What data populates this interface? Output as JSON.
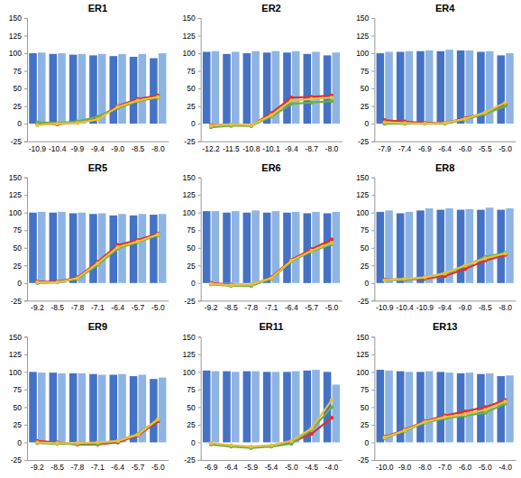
{
  "chart_data": [
    {
      "type": "bar",
      "title": "ER1",
      "categories": [
        "-10.9",
        "-10.4",
        "-9.9",
        "-9.4",
        "-9.0",
        "-8.5",
        "-8.0"
      ],
      "ylim": [
        -25,
        150
      ],
      "yticks": [
        -25,
        0,
        25,
        50,
        75,
        100,
        125,
        150
      ],
      "series": [
        {
          "type": "bar",
          "color": "#4472c4",
          "values": [
            100,
            99,
            98,
            97,
            96,
            95,
            93
          ]
        },
        {
          "type": "bar",
          "color": "#8eb4e3",
          "values": [
            101,
            100,
            99,
            99,
            99,
            99,
            100
          ]
        },
        {
          "type": "line",
          "color": "#e0302c",
          "marker": "circle",
          "values": [
            0,
            -1,
            2,
            8,
            25,
            35,
            40
          ]
        },
        {
          "type": "line",
          "color": "#6ab04c",
          "marker": "circle",
          "values": [
            2,
            1,
            3,
            10,
            22,
            32,
            37
          ]
        },
        {
          "type": "line",
          "color": "#e8c040",
          "marker": "circle",
          "values": [
            -2,
            0,
            1,
            6,
            24,
            33,
            38
          ]
        }
      ]
    },
    {
      "type": "bar",
      "title": "ER2",
      "categories": [
        "-12.2",
        "-11.5",
        "-10.8",
        "-10.1",
        "-9.4",
        "-8.7",
        "-8.0"
      ],
      "ylim": [
        -25,
        150
      ],
      "yticks": [
        -25,
        0,
        25,
        50,
        75,
        100,
        125,
        150
      ],
      "series": [
        {
          "type": "bar",
          "color": "#4472c4",
          "values": [
            102,
            99,
            100,
            101,
            101,
            99,
            97
          ]
        },
        {
          "type": "bar",
          "color": "#8eb4e3",
          "values": [
            103,
            102,
            103,
            103,
            103,
            102,
            101
          ]
        },
        {
          "type": "line",
          "color": "#e0302c",
          "marker": "circle",
          "values": [
            -2,
            -2,
            -3,
            15,
            37,
            38,
            40
          ]
        },
        {
          "type": "line",
          "color": "#6ab04c",
          "marker": "circle",
          "values": [
            -5,
            -3,
            -3,
            10,
            28,
            30,
            32
          ]
        },
        {
          "type": "line",
          "color": "#e8c040",
          "marker": "circle",
          "values": [
            -3,
            -1,
            -2,
            12,
            33,
            35,
            37
          ]
        }
      ]
    },
    {
      "type": "bar",
      "title": "ER4",
      "categories": [
        "-7.9",
        "-7.4",
        "-6.9",
        "-6.4",
        "-6.0",
        "-5.5",
        "-5.0"
      ],
      "ylim": [
        -25,
        150
      ],
      "yticks": [
        -25,
        0,
        25,
        50,
        75,
        100,
        125,
        150
      ],
      "series": [
        {
          "type": "bar",
          "color": "#4472c4",
          "values": [
            100,
            102,
            103,
            103,
            104,
            102,
            97
          ]
        },
        {
          "type": "bar",
          "color": "#8eb4e3",
          "values": [
            102,
            103,
            104,
            105,
            104,
            103,
            100
          ]
        },
        {
          "type": "line",
          "color": "#e0302c",
          "marker": "circle",
          "values": [
            5,
            3,
            1,
            1,
            8,
            15,
            28
          ]
        },
        {
          "type": "line",
          "color": "#6ab04c",
          "marker": "circle",
          "values": [
            0,
            0,
            0,
            0,
            6,
            14,
            25
          ]
        },
        {
          "type": "line",
          "color": "#e8c040",
          "marker": "circle",
          "values": [
            2,
            1,
            0,
            1,
            7,
            16,
            30
          ]
        }
      ]
    },
    {
      "type": "bar",
      "title": "ER5",
      "categories": [
        "-9.2",
        "-8.5",
        "-7.8",
        "-7.1",
        "-6.4",
        "-5.7",
        "-5.0"
      ],
      "ylim": [
        -25,
        150
      ],
      "yticks": [
        -25,
        0,
        25,
        50,
        75,
        100,
        125,
        150
      ],
      "series": [
        {
          "type": "bar",
          "color": "#4472c4",
          "values": [
            100,
            100,
            99,
            98,
            96,
            96,
            97
          ]
        },
        {
          "type": "bar",
          "color": "#8eb4e3",
          "values": [
            101,
            101,
            100,
            99,
            98,
            98,
            98
          ]
        },
        {
          "type": "line",
          "color": "#e0302c",
          "marker": "circle",
          "values": [
            2,
            2,
            8,
            30,
            54,
            61,
            70
          ]
        },
        {
          "type": "line",
          "color": "#6ab04c",
          "marker": "circle",
          "values": [
            0,
            1,
            6,
            26,
            49,
            58,
            68
          ]
        },
        {
          "type": "line",
          "color": "#e8c040",
          "marker": "circle",
          "values": [
            1,
            1,
            7,
            28,
            51,
            59,
            69
          ]
        }
      ]
    },
    {
      "type": "bar",
      "title": "ER6",
      "categories": [
        "-9.2",
        "-8.5",
        "-7.8",
        "-7.1",
        "-6.4",
        "-5.7",
        "-5.0"
      ],
      "ylim": [
        -25,
        150
      ],
      "yticks": [
        -25,
        0,
        25,
        50,
        75,
        100,
        125,
        150
      ],
      "series": [
        {
          "type": "bar",
          "color": "#4472c4",
          "values": [
            102,
            100,
            100,
            100,
            100,
            99,
            99
          ]
        },
        {
          "type": "bar",
          "color": "#8eb4e3",
          "values": [
            102,
            102,
            103,
            102,
            101,
            101,
            101
          ]
        },
        {
          "type": "line",
          "color": "#e0302c",
          "marker": "circle",
          "values": [
            0,
            -2,
            -3,
            8,
            33,
            48,
            62
          ]
        },
        {
          "type": "line",
          "color": "#6ab04c",
          "marker": "circle",
          "values": [
            -2,
            -4,
            -4,
            6,
            31,
            45,
            55
          ]
        },
        {
          "type": "line",
          "color": "#e8c040",
          "marker": "circle",
          "values": [
            -1,
            -3,
            -2,
            7,
            32,
            46,
            57
          ]
        }
      ]
    },
    {
      "type": "bar",
      "title": "ER8",
      "categories": [
        "-10.9",
        "-10.4",
        "-10.9",
        "-9.4",
        "-9.0",
        "-8.5",
        "-8.0"
      ],
      "ylim": [
        -25,
        150
      ],
      "yticks": [
        -25,
        0,
        25,
        50,
        75,
        100,
        125,
        150
      ],
      "series": [
        {
          "type": "bar",
          "color": "#4472c4",
          "values": [
            101,
            99,
            103,
            104,
            104,
            104,
            104
          ]
        },
        {
          "type": "bar",
          "color": "#8eb4e3",
          "values": [
            103,
            101,
            106,
            106,
            105,
            107,
            106
          ]
        },
        {
          "type": "line",
          "color": "#e0302c",
          "marker": "circle",
          "values": [
            5,
            5,
            6,
            10,
            20,
            32,
            40
          ]
        },
        {
          "type": "line",
          "color": "#6ab04c",
          "marker": "circle",
          "values": [
            4,
            4,
            8,
            13,
            24,
            37,
            43
          ]
        },
        {
          "type": "line",
          "color": "#e8c040",
          "marker": "circle",
          "values": [
            4,
            6,
            8,
            14,
            25,
            35,
            42
          ]
        }
      ]
    },
    {
      "type": "bar",
      "title": "ER9",
      "categories": [
        "-9.2",
        "-8.5",
        "-7.8",
        "-7.1",
        "-6.4",
        "-5.7",
        "-5.0"
      ],
      "ylim": [
        -25,
        150
      ],
      "yticks": [
        -25,
        0,
        25,
        50,
        75,
        100,
        125,
        150
      ],
      "series": [
        {
          "type": "bar",
          "color": "#4472c4",
          "values": [
            100,
            99,
            98,
            97,
            96,
            94,
            90
          ]
        },
        {
          "type": "bar",
          "color": "#8eb4e3",
          "values": [
            99,
            98,
            98,
            96,
            97,
            96,
            92
          ]
        },
        {
          "type": "line",
          "color": "#e0302c",
          "marker": "circle",
          "values": [
            2,
            0,
            -3,
            -3,
            0,
            10,
            30
          ]
        },
        {
          "type": "line",
          "color": "#6ab04c",
          "marker": "circle",
          "values": [
            -1,
            -2,
            -2,
            -2,
            2,
            12,
            32
          ]
        },
        {
          "type": "line",
          "color": "#e8c040",
          "marker": "circle",
          "values": [
            0,
            -1,
            -1,
            0,
            2,
            11,
            33
          ]
        }
      ]
    },
    {
      "type": "bar",
      "title": "ER11",
      "categories": [
        "-6.9",
        "-6.4",
        "-5.9",
        "-5.4",
        "-5.0",
        "-4.5",
        "-4.0"
      ],
      "ylim": [
        -25,
        150
      ],
      "yticks": [
        -25,
        0,
        25,
        50,
        75,
        100,
        125,
        150
      ],
      "series": [
        {
          "type": "bar",
          "color": "#4472c4",
          "values": [
            102,
            101,
            101,
            100,
            100,
            102,
            100
          ]
        },
        {
          "type": "bar",
          "color": "#8eb4e3",
          "values": [
            101,
            100,
            101,
            100,
            101,
            103,
            82
          ]
        },
        {
          "type": "line",
          "color": "#e0302c",
          "marker": "circle",
          "values": [
            -2,
            -5,
            -7,
            -5,
            0,
            12,
            35
          ]
        },
        {
          "type": "line",
          "color": "#6ab04c",
          "marker": "circle",
          "values": [
            -3,
            -6,
            -8,
            -6,
            -2,
            18,
            50
          ]
        },
        {
          "type": "line",
          "color": "#e8c040",
          "marker": "circle",
          "values": [
            -1,
            -4,
            -6,
            -4,
            2,
            20,
            60
          ]
        }
      ]
    },
    {
      "type": "bar",
      "title": "ER13",
      "categories": [
        "-10.0",
        "-9.0",
        "-8.0",
        "-7.0",
        "-6.0",
        "-5.0",
        "-4.0"
      ],
      "ylim": [
        -25,
        150
      ],
      "yticks": [
        -25,
        0,
        25,
        50,
        75,
        100,
        125,
        150
      ],
      "series": [
        {
          "type": "bar",
          "color": "#4472c4",
          "values": [
            103,
            101,
            100,
            100,
            98,
            97,
            94
          ]
        },
        {
          "type": "bar",
          "color": "#8eb4e3",
          "values": [
            102,
            100,
            101,
            99,
            99,
            98,
            95
          ]
        },
        {
          "type": "line",
          "color": "#e0302c",
          "marker": "circle",
          "values": [
            8,
            18,
            30,
            38,
            44,
            50,
            60
          ]
        },
        {
          "type": "line",
          "color": "#6ab04c",
          "marker": "circle",
          "values": [
            6,
            16,
            28,
            34,
            38,
            42,
            55
          ]
        },
        {
          "type": "line",
          "color": "#e8c040",
          "marker": "circle",
          "values": [
            7,
            17,
            29,
            36,
            40,
            46,
            58
          ]
        }
      ]
    }
  ]
}
